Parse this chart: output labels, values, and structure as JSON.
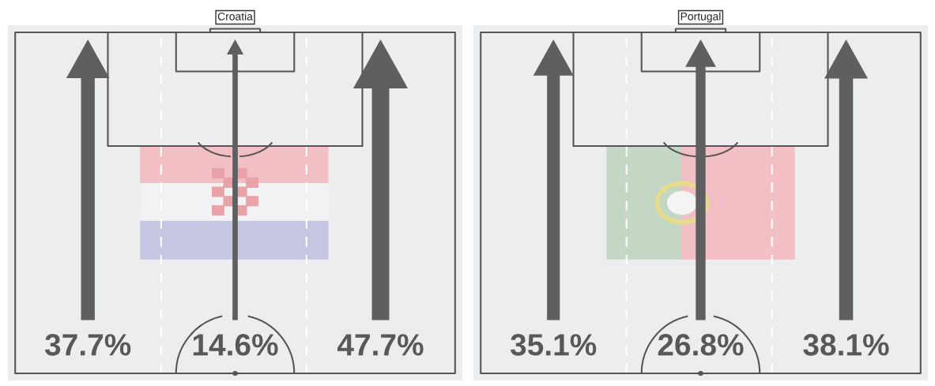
{
  "chart_data": [
    {
      "type": "other",
      "title": "Croatia",
      "categories": [
        null,
        null,
        null
      ],
      "values": [
        37.7,
        14.6,
        47.7
      ],
      "value_labels": [
        "37.7%",
        "14.6%",
        "47.7%"
      ],
      "colors": [
        "#5f5f61",
        "#5f5f61",
        "#5f5f61"
      ]
    },
    {
      "type": "other",
      "title": "Portugal",
      "categories": [
        null,
        null,
        null
      ],
      "values": [
        35.1,
        26.8,
        38.1
      ],
      "value_labels": [
        "35.1%",
        "26.8%",
        "38.1%"
      ],
      "colors": [
        "#5f5f61",
        "#5f5f61",
        "#5f5f61"
      ]
    }
  ]
}
